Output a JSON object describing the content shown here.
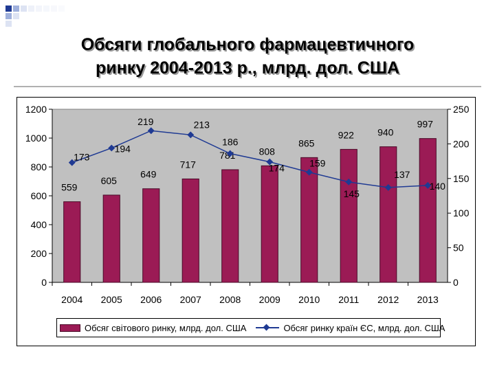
{
  "slide": {
    "title_line1": "Обсяги глобального фармацевтичного",
    "title_line2": "ринку 2004-2013 р., млрд. дол. США"
  },
  "colors": {
    "bar": "#9b1b55",
    "line": "#1f3a93",
    "plot_bg": "#c0c0c0",
    "deco": "#1f3a93"
  },
  "chart_data": {
    "type": "bar",
    "categories": [
      "2004",
      "2005",
      "2006",
      "2007",
      "2008",
      "2009",
      "2010",
      "2011",
      "2012",
      "2013"
    ],
    "series": [
      {
        "name": "Обсяг світового ринку, млрд. дол. США",
        "type": "bar",
        "axis": "left",
        "values": [
          559,
          605,
          649,
          717,
          781,
          808,
          865,
          922,
          940,
          997
        ]
      },
      {
        "name": "Обсяг ринку країн ЄС, млрд. дол. США",
        "type": "line",
        "axis": "right",
        "values": [
          173,
          194,
          219,
          213,
          186,
          174,
          159,
          145,
          137,
          140
        ]
      }
    ],
    "left_axis": {
      "ylim": [
        0,
        1200
      ],
      "ticks": [
        "0",
        "200",
        "400",
        "600",
        "800",
        "1000",
        "1200"
      ]
    },
    "right_axis": {
      "ylim": [
        0,
        250
      ],
      "ticks": [
        "0",
        "50",
        "100",
        "150",
        "200",
        "250"
      ]
    },
    "bar_labels": [
      "559",
      "605",
      "649",
      "717",
      "781",
      "808",
      "865",
      "922",
      "940",
      "997"
    ],
    "line_labels": [
      "173",
      "194",
      "219",
      "213",
      "186",
      "174",
      "159",
      "145",
      "137",
      "140"
    ],
    "grid": false,
    "legend_position": "bottom"
  }
}
